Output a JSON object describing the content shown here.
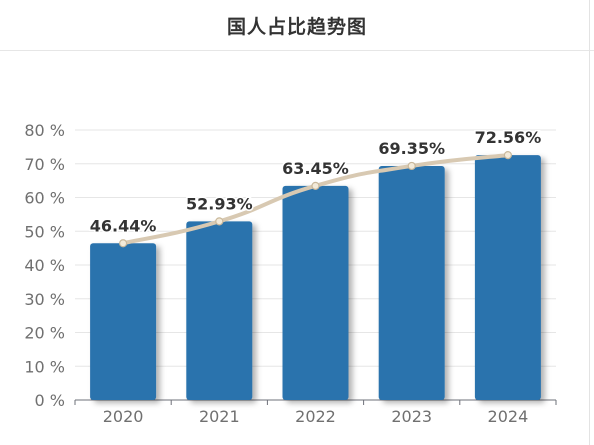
{
  "page": {
    "title": "国人占比趋势图"
  },
  "chart_data": {
    "type": "bar",
    "title": "国人占比趋势图",
    "categories": [
      "2020",
      "2021",
      "2022",
      "2023",
      "2024"
    ],
    "series": [
      {
        "type": "bar",
        "values": [
          46.44,
          52.93,
          63.45,
          69.35,
          72.56
        ]
      },
      {
        "type": "line",
        "values": [
          46.44,
          52.93,
          63.45,
          69.35,
          72.56
        ]
      }
    ],
    "data_labels": [
      "46.44%",
      "52.93%",
      "63.45%",
      "69.35%",
      "72.56%"
    ],
    "y_ticks": [
      "0 %",
      "10 %",
      "20 %",
      "30 %",
      "40 %",
      "50 %",
      "60 %",
      "70 %",
      "80 %"
    ],
    "ylim": [
      0,
      80
    ],
    "grid": true,
    "legend": "none",
    "colors": {
      "bar": "#2b73ad",
      "line": "#d8c9b2",
      "marker": "#f3ead9",
      "grid": "#e6e6e6"
    }
  }
}
